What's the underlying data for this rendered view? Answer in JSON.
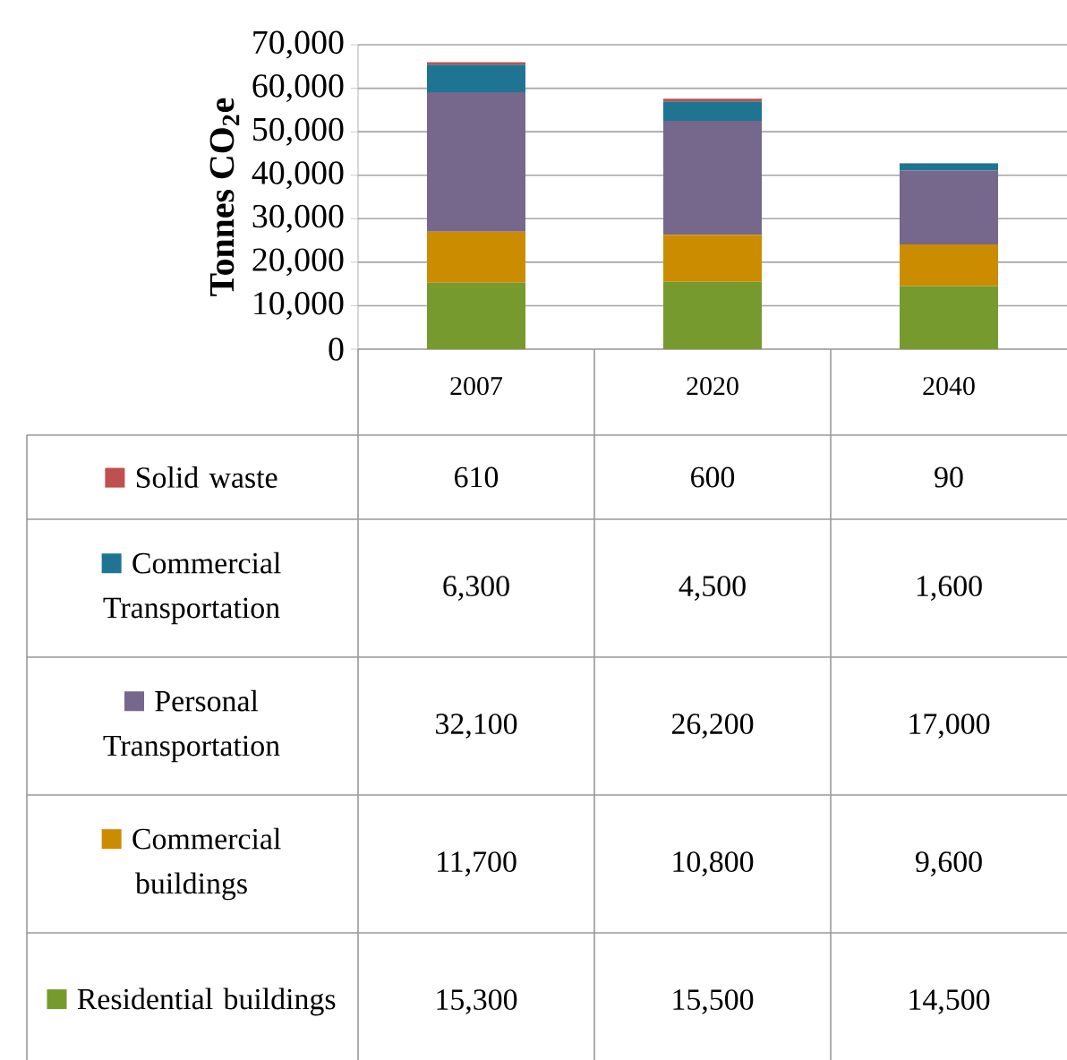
{
  "chart_data": {
    "type": "bar",
    "stacked": true,
    "ylabel": "**Tonnes CO$_{2}$e**",
    "categories": [
      "2007",
      "2020",
      "2040"
    ],
    "series": [
      {
        "name": "Residential buildings",
        "color": "#779a2f",
        "values": [
          15300,
          15500,
          14500
        ],
        "value_labels": [
          "15,300",
          "15,500",
          "14,500"
        ]
      },
      {
        "name": "Commercial buildings",
        "color": "#cc8c00",
        "values": [
          11700,
          10800,
          9600
        ],
        "value_labels": [
          "11,700",
          "10,800",
          "9,600"
        ]
      },
      {
        "name": "Personal Transportation",
        "color": "#76678c",
        "values": [
          32100,
          26200,
          17000
        ],
        "value_labels": [
          "32,100",
          "26,200",
          "17,000"
        ]
      },
      {
        "name": "Commercial Transportation",
        "color": "#1f7591",
        "values": [
          6300,
          4500,
          1600
        ],
        "value_labels": [
          "6,300",
          "4,500",
          "1,600"
        ]
      },
      {
        "name": "Solid waste",
        "color": "#c0504d",
        "values": [
          610,
          600,
          90
        ],
        "value_labels": [
          "610",
          "600",
          "90"
        ]
      }
    ],
    "ylim": [
      0,
      70000
    ],
    "yticks": [
      0,
      {
        "value": 10000,
        "label": "10,000"
      },
      {
        "value": 20000,
        "label": "20,000"
      },
      {
        "value": 30000,
        "label": "30,000"
      },
      {
        "value": 40000,
        "label": "40,000"
      },
      {
        "value": 50000,
        "label": "50,000"
      },
      {
        "value": 60000,
        "label": "60,000"
      },
      {
        "value": 70000,
        "label": "70,000"
      }
    ],
    "grid": "y",
    "legend": "bottom"
  }
}
